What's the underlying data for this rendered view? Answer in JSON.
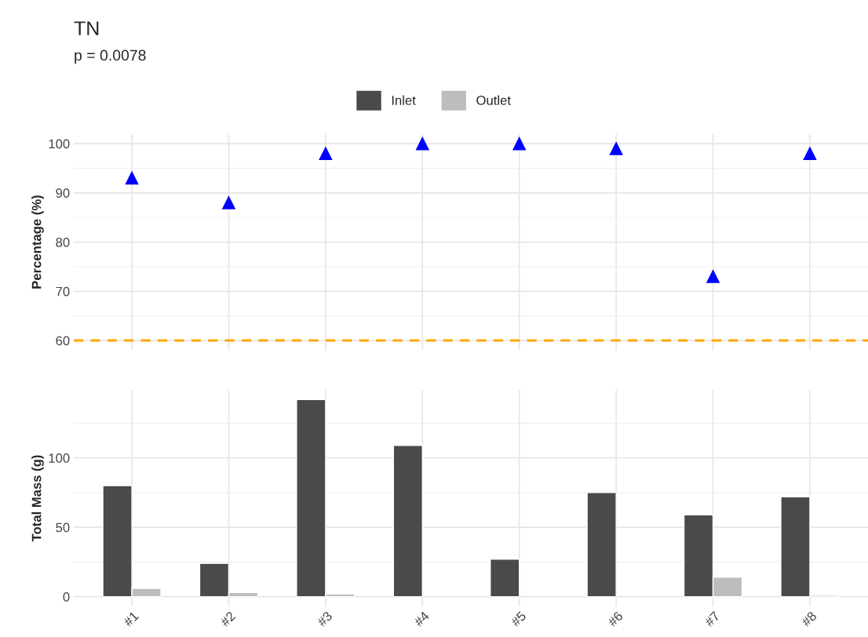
{
  "chart_data": [
    {
      "type": "scatter",
      "title": "TN",
      "subtitle": "p = 0.0078",
      "ylabel": "Percentage (%)",
      "categories": [
        null,
        null,
        null,
        null,
        null,
        null,
        null,
        null
      ],
      "series": [
        {
          "color": "#0000ff",
          "values": [
            93,
            88,
            98,
            100,
            100,
            99,
            73,
            98
          ]
        }
      ],
      "marker": "triangle",
      "ylim": [
        58,
        102
      ],
      "yticks": [
        60,
        70,
        80,
        90,
        100
      ],
      "grid": true,
      "ref_lines": [
        {
          "axis": "y",
          "value": 60,
          "color": "#ffa500",
          "line_style": "dashed"
        }
      ]
    },
    {
      "type": "bar",
      "ylabel": "Total Mass (g)",
      "categories": [
        "#1",
        "#2",
        "#3",
        "#4",
        "#5",
        "#6",
        "#7",
        "#8"
      ],
      "series": [
        {
          "name": "Inlet",
          "color": "#4a4a4a",
          "values": [
            80,
            24,
            142,
            109,
            27,
            75,
            59,
            72
          ]
        },
        {
          "name": "Outlet",
          "color": "#bdbdbd",
          "values": [
            6,
            3,
            2,
            null,
            null,
            null,
            14,
            1
          ]
        }
      ],
      "ylim": [
        -7,
        149
      ],
      "yticks": [
        0,
        50,
        100
      ],
      "grid": true,
      "legend": "top"
    }
  ]
}
